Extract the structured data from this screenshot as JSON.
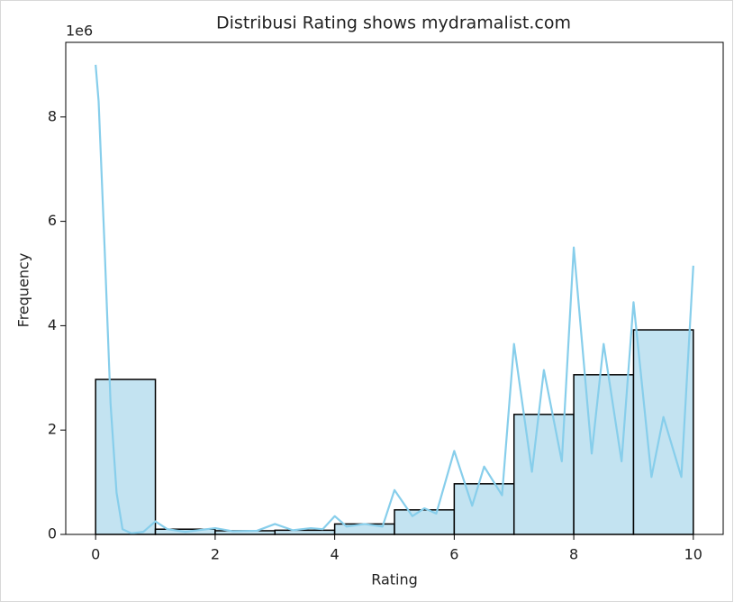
{
  "chart_data": {
    "type": "histogram",
    "title": "Distribusi Rating shows mydramalist.com",
    "x_label": "Rating",
    "y_label": "Frequency",
    "y_offset_label": "1e6",
    "bins": [
      0,
      1,
      2,
      3,
      4,
      5,
      6,
      7,
      8,
      9,
      10
    ],
    "counts": [
      2970000,
      100000,
      70000,
      80000,
      200000,
      470000,
      970000,
      2300000,
      3060000,
      3920000
    ],
    "color": "#c3e3f1",
    "edgecolor": "#000000",
    "kde": {
      "color": "#87ceeb",
      "x": [
        0,
        0.05,
        0.15,
        0.25,
        0.35,
        0.45,
        0.6,
        0.8,
        1.0,
        1.2,
        1.5,
        2.0,
        2.3,
        2.7,
        3.0,
        3.3,
        3.6,
        3.8,
        4.0,
        4.2,
        4.5,
        4.8,
        5.0,
        5.3,
        5.5,
        5.7,
        6.0,
        6.3,
        6.5,
        6.8,
        7.0,
        7.3,
        7.5,
        7.8,
        8.0,
        8.3,
        8.5,
        8.8,
        9.0,
        9.3,
        9.5,
        9.8,
        10.0
      ],
      "y": [
        9000000,
        8300000,
        5500000,
        2500000,
        800000,
        100000,
        20000,
        50000,
        250000,
        100000,
        50000,
        120000,
        60000,
        70000,
        200000,
        80000,
        120000,
        100000,
        350000,
        150000,
        200000,
        150000,
        850000,
        350000,
        500000,
        400000,
        1600000,
        550000,
        1300000,
        750000,
        3650000,
        1200000,
        3150000,
        1400000,
        5500000,
        1550000,
        3650000,
        1400000,
        4450000,
        1100000,
        2250000,
        1100000,
        5150000
      ]
    },
    "xlim": [
      -0.5,
      10.5
    ],
    "ylim": [
      0,
      9430000
    ],
    "xticks": [
      0,
      2,
      4,
      6,
      8,
      10
    ],
    "yticks": [
      0,
      {
        "value": 2000000,
        "label": "2"
      },
      {
        "value": 4000000,
        "label": "4"
      },
      {
        "value": 6000000,
        "label": "6"
      },
      {
        "value": 8000000,
        "label": "8"
      }
    ]
  }
}
